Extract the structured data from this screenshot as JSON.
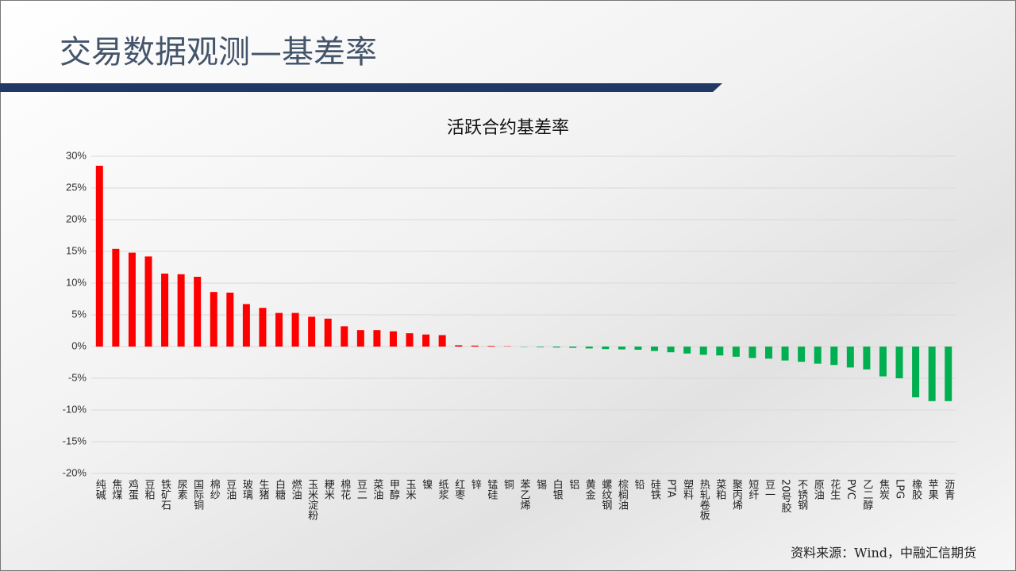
{
  "header": {
    "title": "交易数据观测—基差率"
  },
  "chart_data": {
    "type": "bar",
    "title": "活跃合约基差率",
    "categories": [
      "纯碱",
      "焦煤",
      "鸡蛋",
      "豆粕",
      "铁矿石",
      "尿素",
      "国际铜",
      "棉纱",
      "豆油",
      "玻璃",
      "生猪",
      "白糖",
      "燃油",
      "玉米淀粉",
      "粳米",
      "棉花",
      "豆二",
      "菜油",
      "甲醇",
      "玉米",
      "镍",
      "纸浆",
      "红枣",
      "锌",
      "锰硅",
      "铜",
      "苯乙烯",
      "锡",
      "白银",
      "铝",
      "黄金",
      "螺纹钢",
      "棕榈油",
      "铅",
      "硅铁",
      "PTA",
      "塑料",
      "热轧卷板",
      "菜粕",
      "聚丙烯",
      "短纤",
      "豆一",
      "20号胶",
      "不锈钢",
      "原油",
      "花生",
      "PVC",
      "乙二醇",
      "焦炭",
      "LPG",
      "橡胶",
      "苹果",
      "沥青"
    ],
    "values": [
      28.5,
      15.4,
      14.8,
      14.2,
      11.5,
      11.4,
      11.0,
      8.6,
      8.5,
      6.7,
      6.1,
      5.3,
      5.3,
      4.7,
      4.4,
      3.2,
      2.6,
      2.6,
      2.4,
      2.1,
      1.9,
      1.8,
      0.2,
      0.15,
      0.1,
      0.05,
      -0.05,
      -0.1,
      -0.15,
      -0.2,
      -0.3,
      -0.4,
      -0.45,
      -0.5,
      -0.7,
      -0.9,
      -1.1,
      -1.3,
      -1.4,
      -1.6,
      -1.8,
      -1.9,
      -2.2,
      -2.4,
      -2.7,
      -2.9,
      -3.3,
      -3.6,
      -4.7,
      -5.0,
      -8.0,
      -8.6,
      -8.6
    ],
    "positive_color": "#ff0000",
    "negative_color": "#00b050",
    "ylim": [
      -20,
      30
    ],
    "yticks": [
      {
        "value": -20,
        "label": "-20%"
      },
      {
        "value": -15,
        "label": "-15%"
      },
      {
        "value": -10,
        "label": "-10%"
      },
      {
        "value": -5,
        "label": "-5%"
      },
      {
        "value": 0,
        "label": "0%"
      },
      {
        "value": 5,
        "label": "5%"
      },
      {
        "value": 10,
        "label": "10%"
      },
      {
        "value": 15,
        "label": "15%"
      },
      {
        "value": 20,
        "label": "20%"
      },
      {
        "value": 25,
        "label": "25%"
      },
      {
        "value": 30,
        "label": "30%"
      }
    ],
    "grid": true
  },
  "footer": {
    "source": "资料来源：Wind，中融汇信期货"
  }
}
